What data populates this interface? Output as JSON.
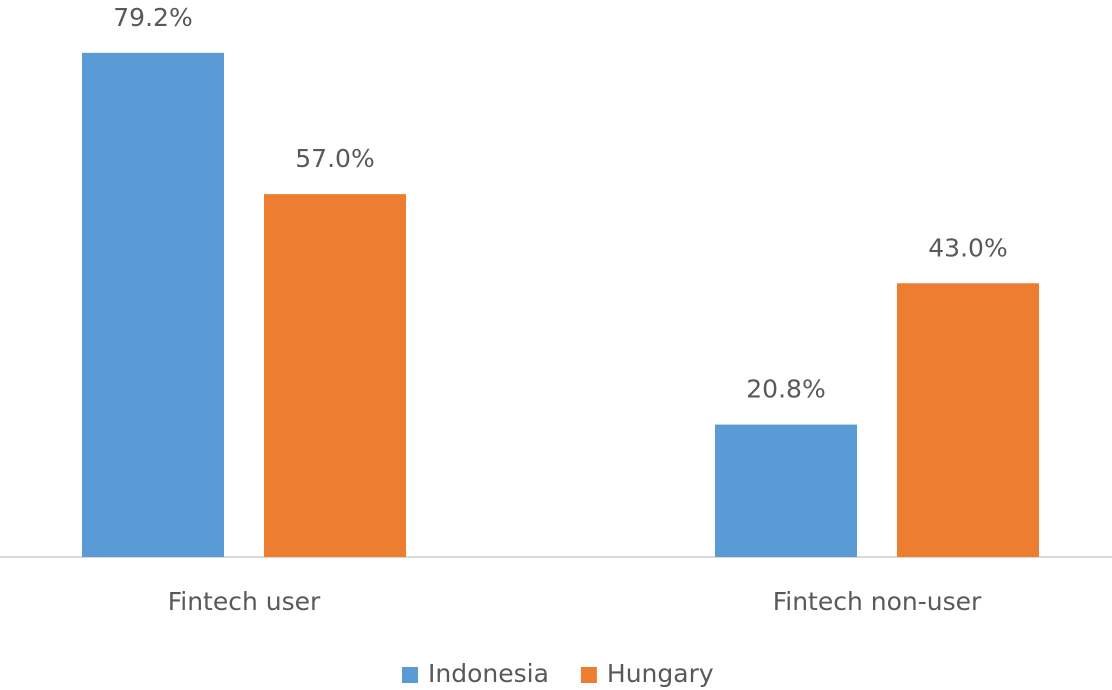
{
  "chart_data": {
    "type": "bar",
    "categories": [
      "Fintech user",
      "Fintech non-user"
    ],
    "series": [
      {
        "name": "Indonesia",
        "color": "#5b9bd5",
        "values": [
          79.2,
          20.8
        ],
        "value_labels": [
          "79.2%",
          "20.8%"
        ]
      },
      {
        "name": "Hungary",
        "color": "#ed7d31",
        "values": [
          57.0,
          43.0
        ],
        "value_labels": [
          "57.0%",
          "43.0%"
        ]
      }
    ],
    "ylim": [
      0,
      87.5
    ],
    "legend": "bottom"
  }
}
